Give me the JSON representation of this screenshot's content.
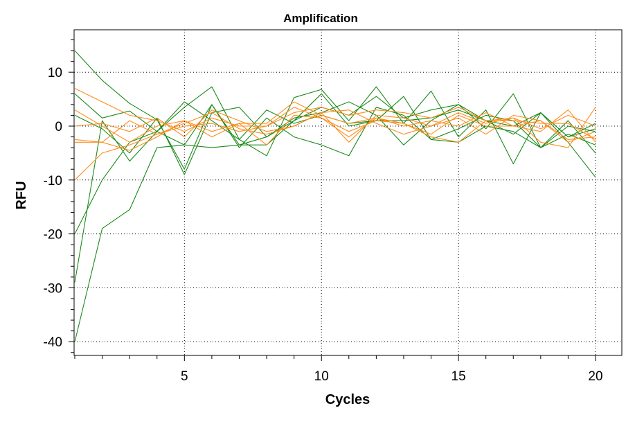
{
  "chart_data": {
    "type": "line",
    "title": "Amplification",
    "xlabel": "Cycles",
    "ylabel": "RFU",
    "xlim": [
      1,
      20.9
    ],
    "ylim": [
      -42.5,
      17
    ],
    "x_ticks": [
      5,
      10,
      15,
      20
    ],
    "y_ticks": [
      10,
      0,
      -10,
      -20,
      -30,
      -40
    ],
    "x_tick_labels": [
      "5",
      "10",
      "15",
      "20"
    ],
    "y_tick_labels": [
      "10",
      "0",
      "-10",
      "-20",
      "-30",
      "-40"
    ],
    "grid": true,
    "colors": {
      "green": "#1a8a1a",
      "orange": "#ff8c1a"
    },
    "x": [
      1,
      2,
      3,
      4,
      5,
      6,
      7,
      8,
      9,
      10,
      11,
      12,
      13,
      14,
      15,
      16,
      17,
      18,
      19,
      20
    ],
    "series": [
      {
        "color": "green",
        "values": [
          14,
          8.5,
          4.2,
          1.2,
          -8,
          4.0,
          -3.5,
          -3.5,
          1.0,
          6.0,
          0.0,
          1.0,
          5.5,
          -2.5,
          -3.0,
          0.0,
          -1.0,
          -4.0,
          0.0,
          -1.0
        ]
      },
      {
        "color": "green",
        "values": [
          6,
          1.5,
          2.8,
          -1.0,
          4.5,
          1.0,
          -2.5,
          3.0,
          0.5,
          2.0,
          0.5,
          1.0,
          1.0,
          1.5,
          3.0,
          1.0,
          0.0,
          2.5,
          -2.0,
          -0.5
        ]
      },
      {
        "color": "green",
        "values": [
          2,
          -0.5,
          -5.0,
          1.5,
          -9.0,
          2.5,
          3.5,
          -2.0,
          1.0,
          3.5,
          2.0,
          5.5,
          1.5,
          3.0,
          4.0,
          1.0,
          -1.5,
          2.5,
          -2.0,
          0.5
        ]
      },
      {
        "color": "green",
        "values": [
          -20,
          -10.0,
          -3.0,
          -1.0,
          3.5,
          7.3,
          -2.5,
          -5.5,
          5.3,
          6.8,
          1.0,
          7.3,
          0.5,
          6.5,
          -2.0,
          3.0,
          -7.0,
          2.5,
          -3.0,
          -9.5
        ]
      },
      {
        "color": "green",
        "values": [
          -29,
          1.0,
          -6.5,
          -1.0,
          -3.5,
          -4.0,
          -3.5,
          -2.0,
          1.5,
          2.5,
          4.5,
          2.0,
          -3.5,
          1.0,
          4.0,
          -0.5,
          6.0,
          -4.0,
          1.0,
          -5.0
        ]
      },
      {
        "color": "green",
        "values": [
          -40,
          -19.0,
          -15.5,
          -4.0,
          -3.5,
          4.0,
          -4.0,
          1.5,
          -2.0,
          -3.5,
          -5.5,
          3.5,
          2.0,
          -2.5,
          -0.5,
          2.0,
          1.0,
          -4.0,
          -1.5,
          -3.5
        ]
      },
      {
        "color": "orange",
        "values": [
          7,
          4.5,
          2.0,
          1.0,
          -1.0,
          1.5,
          0.0,
          0.0,
          2.5,
          3.5,
          2.0,
          3.0,
          2.5,
          1.5,
          3.5,
          1.0,
          1.5,
          -0.5,
          2.0,
          0.0
        ]
      },
      {
        "color": "orange",
        "values": [
          3,
          0.0,
          -3.0,
          0.0,
          1.0,
          -2.0,
          0.5,
          0.5,
          4.5,
          2.0,
          0.5,
          1.5,
          0.0,
          1.0,
          0.0,
          2.5,
          0.0,
          -1.0,
          3.0,
          -3.0
        ]
      },
      {
        "color": "orange",
        "values": [
          -10,
          -5.0,
          -3.5,
          -1.5,
          0.5,
          2.5,
          -0.5,
          -1.5,
          0.0,
          2.5,
          3.0,
          0.5,
          -1.5,
          0.0,
          2.5,
          0.5,
          1.5,
          -3.0,
          -4.0,
          3.5
        ]
      },
      {
        "color": "orange",
        "values": [
          -2.5,
          -3.0,
          1.0,
          -1.5,
          0.0,
          0.5,
          -1.0,
          0.0,
          3.5,
          1.5,
          -2.0,
          1.5,
          0.5,
          -2.0,
          -3.0,
          1.0,
          1.0,
          0.5,
          0.5,
          -2.5
        ]
      },
      {
        "color": "orange",
        "values": [
          0,
          0.5,
          -1.0,
          1.5,
          -2.0,
          3.0,
          1.0,
          -1.0,
          0.0,
          2.5,
          -3.0,
          2.0,
          1.5,
          0.0,
          1.5,
          -1.5,
          2.0,
          1.0,
          -3.0,
          -1.0
        ]
      },
      {
        "color": "orange",
        "values": [
          -3,
          -3.0,
          -4.5,
          -2.0,
          1.0,
          -1.0,
          0.5,
          -3.5,
          2.0,
          1.5,
          -1.0,
          1.0,
          0.5,
          -1.5,
          2.0,
          0.0,
          0.0,
          1.0,
          -2.5,
          -2.0
        ]
      }
    ]
  }
}
